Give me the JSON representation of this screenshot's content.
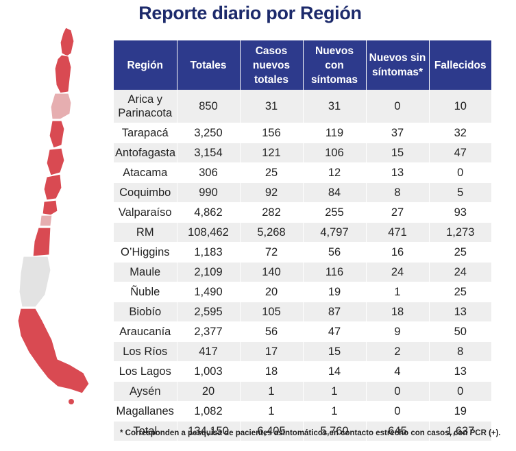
{
  "title": "Reporte diario por Región",
  "table": {
    "headers": [
      "Región",
      "Totales",
      "Casos nuevos totales",
      "Nuevos con síntomas",
      "Nuevos sin síntomas*",
      "Fallecidos"
    ],
    "rows": [
      [
        "Arica y Parinacota",
        "850",
        "31",
        "31",
        "0",
        "10"
      ],
      [
        "Tarapacá",
        "3,250",
        "156",
        "119",
        "37",
        "32"
      ],
      [
        "Antofagasta",
        "3,154",
        "121",
        "106",
        "15",
        "47"
      ],
      [
        "Atacama",
        "306",
        "25",
        "12",
        "13",
        "0"
      ],
      [
        "Coquimbo",
        "990",
        "92",
        "84",
        "8",
        "5"
      ],
      [
        "Valparaíso",
        "4,862",
        "282",
        "255",
        "27",
        "93"
      ],
      [
        "RM",
        "108,462",
        "5,268",
        "4,797",
        "471",
        "1,273"
      ],
      [
        "O’Higgins",
        "1,183",
        "72",
        "56",
        "16",
        "25"
      ],
      [
        "Maule",
        "2,109",
        "140",
        "116",
        "24",
        "24"
      ],
      [
        "Ñuble",
        "1,490",
        "20",
        "19",
        "1",
        "25"
      ],
      [
        "Biobío",
        "2,595",
        "105",
        "87",
        "18",
        "13"
      ],
      [
        "Araucanía",
        "2,377",
        "56",
        "47",
        "9",
        "50"
      ],
      [
        "Los Ríos",
        "417",
        "17",
        "15",
        "2",
        "8"
      ],
      [
        "Los Lagos",
        "1,003",
        "18",
        "14",
        "4",
        "13"
      ],
      [
        "Aysén",
        "20",
        "1",
        "1",
        "0",
        "0"
      ],
      [
        "Magallanes",
        "1,082",
        "1",
        "1",
        "0",
        "19"
      ],
      [
        "Total",
        "134,150",
        "6,405",
        "5,760",
        "645",
        "1,637"
      ]
    ]
  },
  "footnote": "* Corresponden a pesquisa de pacientes asintomáticos en contacto estrecho con casos, con PCR (+).",
  "colors": {
    "header_bg": "#2d3a8c",
    "title": "#1c2a6b",
    "map_red": "#d94a52",
    "map_pink": "#e6aeb0",
    "map_gray": "#e3e3e3"
  }
}
